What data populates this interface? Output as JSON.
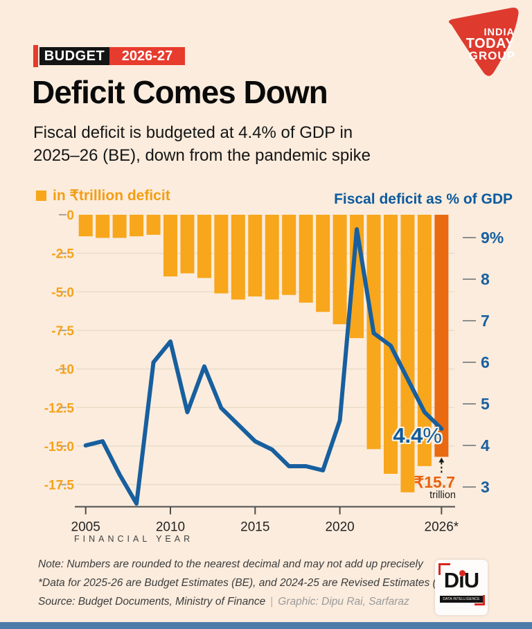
{
  "header": {
    "badge": {
      "label": "BUDGET",
      "year": "2026-27"
    },
    "title": "Deficit Comes Down",
    "subtitle_line1": "Fiscal deficit is budgeted at 4.4% of GDP in",
    "subtitle_line2": "2025–26 (BE), down from the pandemic spike",
    "logo": {
      "line1": "INDIA",
      "line2": "TODAY",
      "line3": "GROUP"
    }
  },
  "chart": {
    "legend_bars": "in ₹trillion deficit",
    "legend_line": "Fiscal deficit as % of GDP",
    "x_axis_title": "FINANCIAL YEAR",
    "annotation_pct_value": "4.4",
    "annotation_pct_sign": "%",
    "annotation_amount": "₹15.7",
    "annotation_amount_unit": "trillion"
  },
  "chart_data": {
    "type": "bar+line combo",
    "title": "Deficit Comes Down",
    "categories": [
      "2005",
      "2006",
      "2007",
      "2008",
      "2009",
      "2010",
      "2011",
      "2012",
      "2013",
      "2014",
      "2015",
      "2016",
      "2017",
      "2018",
      "2019",
      "2020",
      "2021",
      "2022",
      "2023",
      "2024",
      "2025",
      "2026"
    ],
    "x_tick_labels": [
      "2005",
      "2010",
      "2015",
      "2020",
      "2026*"
    ],
    "x_tick_indices": [
      0,
      5,
      10,
      15,
      21
    ],
    "xlabel": "FINANCIAL YEAR",
    "series": [
      {
        "name": "Fiscal deficit in ₹ trillion",
        "type": "bar",
        "axis": "left",
        "values": [
          -1.4,
          -1.5,
          -1.5,
          -1.4,
          -1.3,
          -4.0,
          -3.8,
          -4.1,
          -5.1,
          -5.5,
          -5.3,
          -5.5,
          -5.2,
          -5.7,
          -6.3,
          -7.1,
          -8.0,
          -15.2,
          -16.8,
          -18.0,
          -16.3,
          -15.7
        ]
      },
      {
        "name": "Fiscal deficit as % of GDP",
        "type": "line",
        "axis": "right",
        "values": [
          4.0,
          4.1,
          3.3,
          2.6,
          6.0,
          6.5,
          4.8,
          5.9,
          4.9,
          4.5,
          4.1,
          3.9,
          3.5,
          3.5,
          3.4,
          4.6,
          9.2,
          6.7,
          6.4,
          5.6,
          4.8,
          4.4
        ]
      }
    ],
    "left_axis": {
      "labels": [
        "0",
        "-2.5",
        "-5.0",
        "-7.5",
        "-10",
        "-12.5",
        "-15.0",
        "-17.5"
      ],
      "values": [
        0,
        -2.5,
        -5,
        -7.5,
        -10,
        -12.5,
        -15,
        -17.5
      ],
      "range": [
        -18.5,
        0
      ]
    },
    "right_axis": {
      "labels": [
        "9%",
        "8",
        "7",
        "6",
        "5",
        "4",
        "3"
      ],
      "values": [
        9,
        8,
        7,
        6,
        5,
        4,
        3
      ],
      "range": [
        2.5,
        9.5
      ],
      "unit": "%"
    },
    "grid": true,
    "legend_position": "top",
    "highlight_last_bar": true,
    "annotations": {
      "last_line_value": "4.4%",
      "last_bar_value": "₹15.7 trillion"
    }
  },
  "footer": {
    "note1": "Note: Numbers are rounded to the nearest decimal and may not add up precisely",
    "note2": "*Data for 2025-26 are Budget Estimates (BE), and 2024-25 are Revised Estimates (RE)",
    "source": "Source: Budget Documents, Ministry of Finance",
    "separator": "|",
    "credit": "Graphic: Dipu Rai, Sarfaraz",
    "diu_logo": {
      "text": "DiU",
      "subtext": "DATA INTELLIGENCE UNIT"
    }
  },
  "colors": {
    "background": "#fbecdd",
    "bar_orange": "#f8a61c",
    "bar_highlight": "#e96a10",
    "line_blue": "#175f9e",
    "axis_label_orange": "#f5a21b",
    "axis_label_blue": "#19609f",
    "gridline": "#e9dcc8",
    "tick_gray": "#a9a29a",
    "axis_line": "#4d4d4d",
    "badge_red": "#e73b2d",
    "annotation_orange": "#e8620d",
    "bottom_strip": "#4e7ca9"
  }
}
